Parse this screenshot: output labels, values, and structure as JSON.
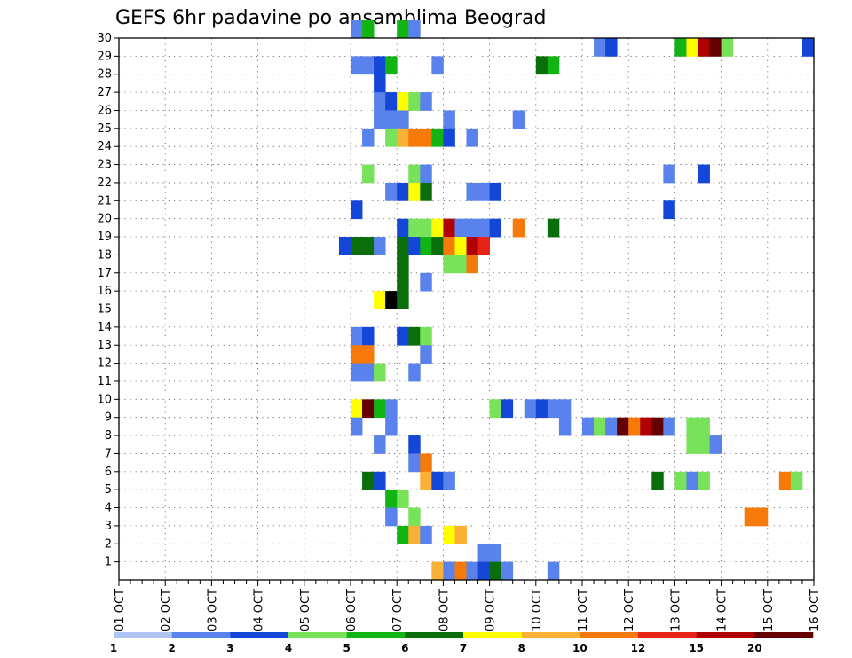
{
  "chart_data": {
    "type": "heatmap",
    "title": "GEFS 6hr padavine po ansamblima Beograd",
    "x_labels": [
      "01 OCT",
      "02 OCT",
      "03 OCT",
      "04 OCT",
      "05 OCT",
      "06 OCT",
      "07 OCT",
      "08 OCT",
      "09 OCT",
      "10 OCT",
      "11 OCT",
      "12 OCT",
      "13 OCT",
      "14 OCT",
      "15 OCT",
      "16 OCT"
    ],
    "x_range": [
      "01 OCT 00Z",
      "16 OCT 00Z"
    ],
    "steps_per_day": 4,
    "y_range": [
      0,
      30
    ],
    "y_labels": [
      "1",
      "2",
      "3",
      "4",
      "5",
      "6",
      "7",
      "8",
      "9",
      "10",
      "11",
      "12",
      "13",
      "14",
      "15",
      "16",
      "17",
      "18",
      "19",
      "20",
      "21",
      "22",
      "23",
      "24",
      "25",
      "26",
      "27",
      "28",
      "29",
      "30"
    ],
    "grid": "dotted",
    "colorbar": {
      "placement": "bottom",
      "labels": [
        "1",
        "2",
        "3",
        "4",
        "5",
        "6",
        "7",
        "8",
        "10",
        "12",
        "15",
        "20"
      ],
      "colors": [
        "#b0c4f4",
        "#5a82ec",
        "#1446d8",
        "#78e25a",
        "#12b414",
        "#0a6e0a",
        "#ffff00",
        "#fbb135",
        "#f57a0a",
        "#e52317",
        "#b00000",
        "#640000"
      ]
    },
    "cells": [
      [
        20,
        30,
        1
      ],
      [
        21,
        30,
        4
      ],
      [
        24,
        30,
        4
      ],
      [
        25,
        30,
        1
      ],
      [
        41,
        29,
        1
      ],
      [
        42,
        29,
        2
      ],
      [
        48,
        29,
        4
      ],
      [
        49,
        29,
        6
      ],
      [
        50,
        29,
        10
      ],
      [
        51,
        29,
        11
      ],
      [
        52,
        29,
        3
      ],
      [
        59,
        29,
        2
      ],
      [
        20,
        28,
        1
      ],
      [
        21,
        28,
        1
      ],
      [
        22,
        28,
        2
      ],
      [
        23,
        28,
        4
      ],
      [
        27,
        28,
        1
      ],
      [
        36,
        28,
        5
      ],
      [
        37,
        28,
        4
      ],
      [
        22,
        27,
        2
      ],
      [
        22,
        26,
        1
      ],
      [
        23,
        26,
        2
      ],
      [
        24,
        26,
        6
      ],
      [
        25,
        26,
        3
      ],
      [
        26,
        26,
        1
      ],
      [
        22,
        25,
        1
      ],
      [
        23,
        25,
        1
      ],
      [
        24,
        25,
        1
      ],
      [
        28,
        25,
        1
      ],
      [
        34,
        25,
        1
      ],
      [
        21,
        24,
        1
      ],
      [
        23,
        24,
        3
      ],
      [
        24,
        24,
        7
      ],
      [
        25,
        24,
        8
      ],
      [
        26,
        24,
        8
      ],
      [
        27,
        24,
        4
      ],
      [
        28,
        24,
        2
      ],
      [
        30,
        24,
        1
      ],
      [
        21,
        22,
        3
      ],
      [
        25,
        22,
        3
      ],
      [
        26,
        22,
        1
      ],
      [
        47,
        22,
        1
      ],
      [
        50,
        22,
        2
      ],
      [
        23,
        21,
        1
      ],
      [
        24,
        21,
        2
      ],
      [
        25,
        21,
        6
      ],
      [
        26,
        21,
        5
      ],
      [
        30,
        21,
        1
      ],
      [
        31,
        21,
        1
      ],
      [
        32,
        21,
        2
      ],
      [
        20,
        20,
        2
      ],
      [
        47,
        20,
        2
      ],
      [
        24,
        19,
        2
      ],
      [
        25,
        19,
        3
      ],
      [
        26,
        19,
        3
      ],
      [
        27,
        19,
        6
      ],
      [
        28,
        19,
        10
      ],
      [
        29,
        19,
        1
      ],
      [
        30,
        19,
        1
      ],
      [
        31,
        19,
        1
      ],
      [
        32,
        19,
        2
      ],
      [
        34,
        19,
        8
      ],
      [
        37,
        19,
        5
      ],
      [
        19,
        18,
        2
      ],
      [
        20,
        18,
        5
      ],
      [
        21,
        18,
        5
      ],
      [
        22,
        18,
        1
      ],
      [
        24,
        18,
        5
      ],
      [
        25,
        18,
        2
      ],
      [
        26,
        18,
        4
      ],
      [
        27,
        18,
        5
      ],
      [
        28,
        18,
        8
      ],
      [
        29,
        18,
        6
      ],
      [
        30,
        18,
        10
      ],
      [
        31,
        18,
        9
      ],
      [
        24,
        17,
        5
      ],
      [
        28,
        17,
        3
      ],
      [
        29,
        17,
        3
      ],
      [
        30,
        17,
        8
      ],
      [
        24,
        16,
        5
      ],
      [
        26,
        16,
        1
      ],
      [
        22,
        15,
        6
      ],
      [
        23,
        15,
        12
      ],
      [
        24,
        15,
        5
      ],
      [
        20,
        13,
        1
      ],
      [
        21,
        13,
        2
      ],
      [
        24,
        13,
        2
      ],
      [
        25,
        13,
        5
      ],
      [
        26,
        13,
        3
      ],
      [
        20,
        12,
        8
      ],
      [
        21,
        12,
        8
      ],
      [
        26,
        12,
        1
      ],
      [
        20,
        11,
        1
      ],
      [
        21,
        11,
        1
      ],
      [
        22,
        11,
        3
      ],
      [
        25,
        11,
        1
      ],
      [
        20,
        9,
        6
      ],
      [
        21,
        9,
        11
      ],
      [
        22,
        9,
        4
      ],
      [
        23,
        9,
        1
      ],
      [
        32,
        9,
        3
      ],
      [
        33,
        9,
        2
      ],
      [
        35,
        9,
        1
      ],
      [
        36,
        9,
        2
      ],
      [
        37,
        9,
        1
      ],
      [
        38,
        9,
        1
      ],
      [
        20,
        8,
        1
      ],
      [
        23,
        8,
        1
      ],
      [
        38,
        8,
        1
      ],
      [
        40,
        8,
        1
      ],
      [
        41,
        8,
        3
      ],
      [
        42,
        8,
        1
      ],
      [
        43,
        8,
        11
      ],
      [
        44,
        8,
        8
      ],
      [
        45,
        8,
        10
      ],
      [
        46,
        8,
        11
      ],
      [
        47,
        8,
        1
      ],
      [
        49,
        8,
        3
      ],
      [
        50,
        8,
        3
      ],
      [
        22,
        7,
        1
      ],
      [
        25,
        7,
        2
      ],
      [
        49,
        7,
        3
      ],
      [
        50,
        7,
        3
      ],
      [
        51,
        7,
        1
      ],
      [
        25,
        6,
        1
      ],
      [
        26,
        6,
        8
      ],
      [
        21,
        5,
        5
      ],
      [
        22,
        5,
        2
      ],
      [
        26,
        5,
        7
      ],
      [
        27,
        5,
        2
      ],
      [
        28,
        5,
        1
      ],
      [
        46,
        5,
        5
      ],
      [
        48,
        5,
        3
      ],
      [
        49,
        5,
        1
      ],
      [
        50,
        5,
        3
      ],
      [
        57,
        5,
        8
      ],
      [
        58,
        5,
        3
      ],
      [
        23,
        4,
        4
      ],
      [
        24,
        4,
        3
      ],
      [
        23,
        3,
        1
      ],
      [
        25,
        3,
        3
      ],
      [
        54,
        3,
        8
      ],
      [
        55,
        3,
        8
      ],
      [
        24,
        2,
        4
      ],
      [
        25,
        2,
        7
      ],
      [
        26,
        2,
        1
      ],
      [
        28,
        2,
        6
      ],
      [
        29,
        2,
        7
      ],
      [
        31,
        1,
        1
      ],
      [
        32,
        1,
        1
      ],
      [
        27,
        0,
        7
      ],
      [
        28,
        0,
        1
      ],
      [
        29,
        0,
        8
      ],
      [
        30,
        0,
        1
      ],
      [
        31,
        0,
        2
      ],
      [
        32,
        0,
        5
      ],
      [
        33,
        0,
        1
      ],
      [
        37,
        0,
        1
      ]
    ]
  }
}
